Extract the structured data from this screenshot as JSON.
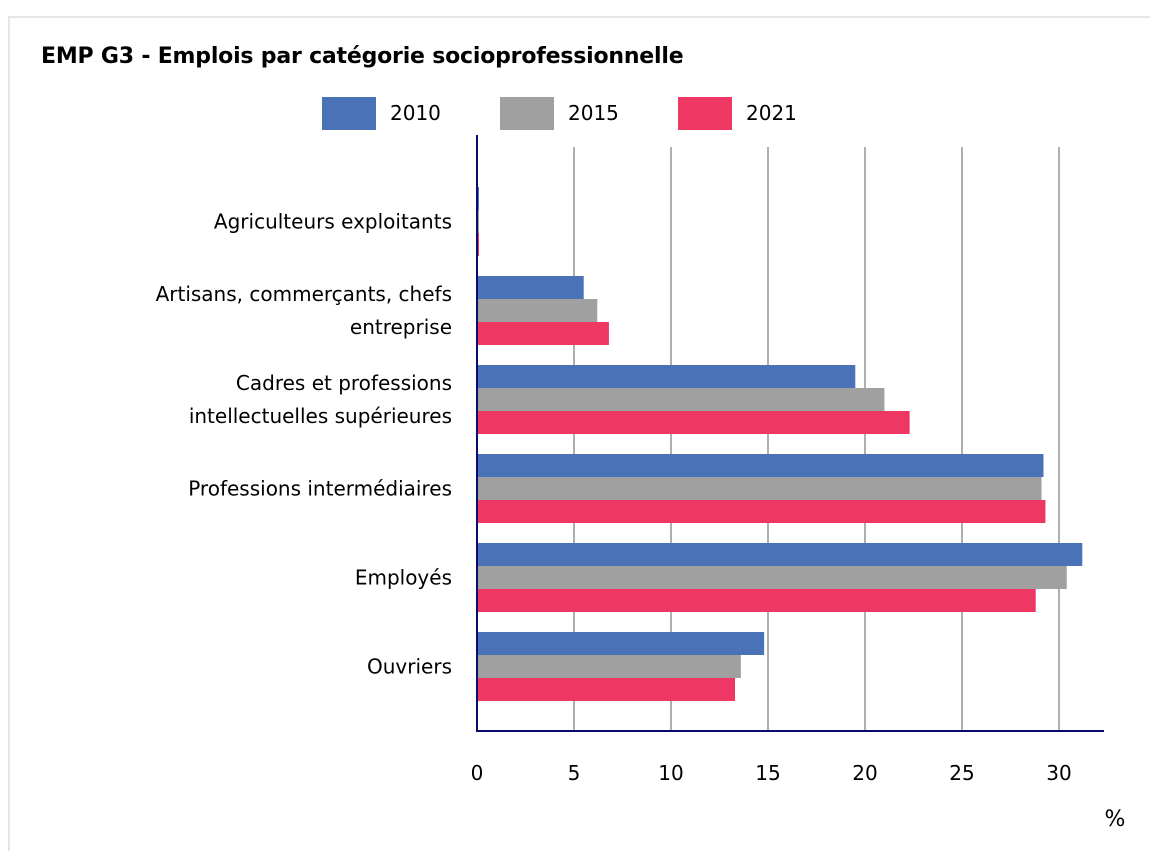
{
  "chart_data": {
    "type": "bar",
    "orientation": "horizontal",
    "title": "EMP G3 - Emplois par catégorie socioprofessionnelle",
    "categories": [
      [
        "Agriculteurs exploitants"
      ],
      [
        "Artisans, commerçants, chefs",
        "entreprise"
      ],
      [
        "Cadres et professions",
        "intellectuelles supérieures"
      ],
      [
        "Professions intermédiaires"
      ],
      [
        "Employés"
      ],
      [
        "Ouvriers"
      ]
    ],
    "series": [
      {
        "name": "2010",
        "color": "#4a72b6",
        "values": [
          0.1,
          5.5,
          19.5,
          29.2,
          31.2,
          14.8
        ]
      },
      {
        "name": "2015",
        "color": "#a0a0a0",
        "values": [
          0.1,
          6.2,
          21.0,
          29.1,
          30.4,
          13.6
        ]
      },
      {
        "name": "2021",
        "color": "#ee3762",
        "values": [
          0.1,
          6.8,
          22.3,
          29.3,
          28.8,
          13.3
        ]
      }
    ],
    "xticks": [
      0,
      5,
      10,
      15,
      20,
      25,
      30
    ],
    "xlim": [
      0,
      32.5
    ],
    "xunit": "%",
    "grid": true,
    "legend_position": "top"
  },
  "colors": {
    "axis": "#0b0b6e",
    "grid": "#7a7a7a"
  }
}
